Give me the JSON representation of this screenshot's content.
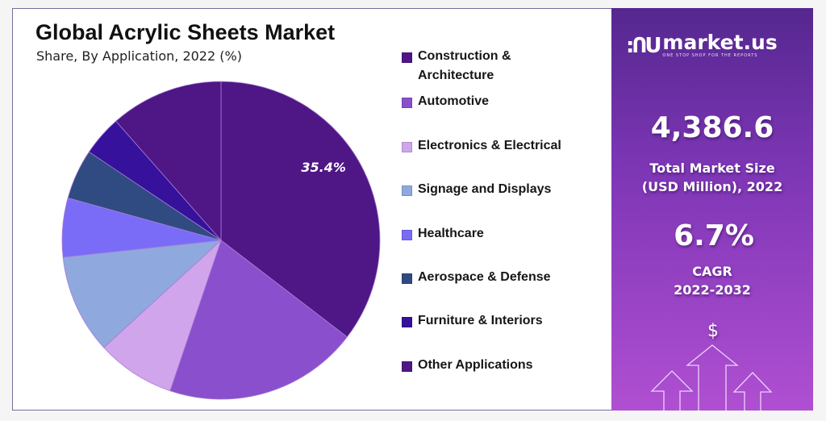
{
  "chart_data": {
    "type": "pie",
    "title": "Global Acrylic Sheets Market",
    "subtitle": "Share, By Application, 2022 (%)",
    "legend_position": "right",
    "categories": [
      "Construction & Architecture",
      "Automotive",
      "Electronics & Electrical",
      "Signage and Displays",
      "Healthcare",
      "Aerospace & Defense",
      "Furniture & Interiors",
      "Other Applications"
    ],
    "legend_lines": [
      [
        "Construction &",
        "Architecture"
      ],
      [
        "Automotive"
      ],
      [
        "Electronics & Electrical"
      ],
      [
        "Signage and Displays"
      ],
      [
        "Healthcare"
      ],
      [
        "Aerospace & Defense"
      ],
      [
        "Furniture & Interiors"
      ],
      [
        "Other Applications"
      ]
    ],
    "values": [
      35.4,
      19.8,
      8.0,
      10.1,
      6.0,
      5.1,
      4.1,
      11.5
    ],
    "colors": [
      "#4f1686",
      "#8a4fcc",
      "#d0a5ec",
      "#8fa8de",
      "#7a6cf6",
      "#2f4b82",
      "#36119b",
      "#4f1686"
    ],
    "data_labels": [
      {
        "index": 0,
        "text": "35.4%"
      }
    ]
  },
  "side_panel": {
    "brand": "market.us",
    "brand_tagline": "ONE STOP SHOP FOR THE REPORTS",
    "market_size": "4,386.6",
    "market_size_label_1": "Total Market Size",
    "market_size_label_2": "(USD Million), 2022",
    "cagr": "6.7%",
    "cagr_label": "CAGR",
    "cagr_period": "2022-2032",
    "dollar_symbol": "$",
    "icon": "growth-arrows-icon"
  }
}
